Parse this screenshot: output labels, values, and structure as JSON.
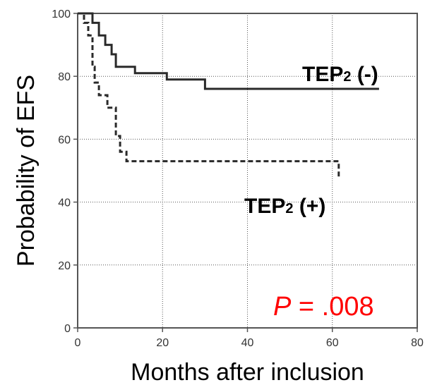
{
  "chart_data": {
    "type": "line",
    "xlabel": "Months after inclusion",
    "ylabel": "Probability of EFS",
    "xlim": [
      0,
      80
    ],
    "ylim": [
      0,
      100
    ],
    "x_ticks": [
      0,
      20,
      40,
      60,
      80
    ],
    "y_ticks": [
      0,
      20,
      40,
      60,
      80,
      100
    ],
    "grid": true,
    "step": true,
    "series": [
      {
        "name": "TEP2 (-)",
        "label_main": "TEP",
        "label_sub": "2",
        "label_suffix": " (-)",
        "style": "solid",
        "x": [
          0,
          3.5,
          5,
          6.5,
          8,
          9,
          10,
          13.5,
          21,
          30,
          71
        ],
        "y": [
          100,
          97,
          93,
          90,
          87,
          83,
          83,
          81,
          79,
          76,
          76
        ]
      },
      {
        "name": "TEP2 (+)",
        "label_main": "TEP",
        "label_sub": "2",
        "label_suffix": " (+)",
        "style": "dashed",
        "x": [
          0,
          1.5,
          2.5,
          3.5,
          4,
          5,
          7,
          9,
          10,
          11.5,
          34,
          61.5
        ],
        "y": [
          100,
          97,
          93,
          83,
          78,
          74,
          70,
          61,
          56,
          53,
          53,
          48
        ]
      }
    ],
    "annotation": {
      "italic": "P",
      "rest": " = .008",
      "color": "#ff0000"
    }
  }
}
